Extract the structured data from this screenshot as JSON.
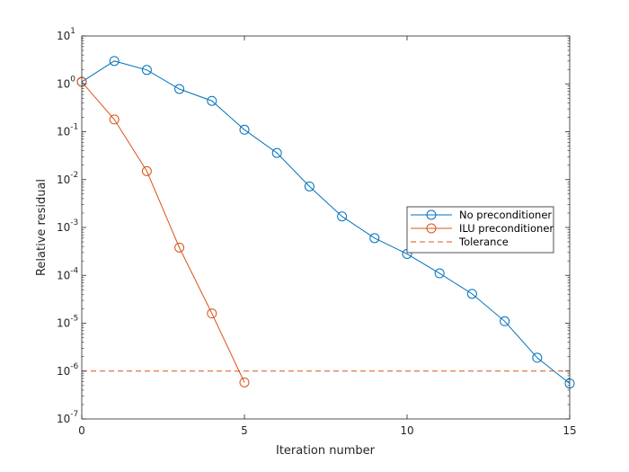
{
  "chart_data": {
    "type": "line",
    "xlabel": "Iteration number",
    "ylabel": "Relative residual",
    "xlim": [
      0,
      15
    ],
    "ylim": [
      1e-07,
      10
    ],
    "yscale": "log",
    "grid": false,
    "legend_location": "east",
    "x_ticks": [
      {
        "value": 0,
        "label": "0"
      },
      {
        "value": 5,
        "label": "5"
      },
      {
        "value": 10,
        "label": "10"
      },
      {
        "value": 15,
        "label": "15"
      }
    ],
    "y_ticks": [
      {
        "exp": -7,
        "base": "10",
        "sup": "-7"
      },
      {
        "exp": -6,
        "base": "10",
        "sup": "-6"
      },
      {
        "exp": -5,
        "base": "10",
        "sup": "-5"
      },
      {
        "exp": -4,
        "base": "10",
        "sup": "-4"
      },
      {
        "exp": -3,
        "base": "10",
        "sup": "-3"
      },
      {
        "exp": -2,
        "base": "10",
        "sup": "-2"
      },
      {
        "exp": -1,
        "base": "10",
        "sup": "-1"
      },
      {
        "exp": 0,
        "base": "10",
        "sup": "0"
      },
      {
        "exp": 1,
        "base": "10",
        "sup": "1"
      }
    ],
    "series": [
      {
        "name": "No preconditioner",
        "color": "#0072BD",
        "marker": "circle",
        "line_style": "solid",
        "x": [
          0,
          1,
          2,
          3,
          4,
          5,
          6,
          7,
          8,
          9,
          10,
          11,
          12,
          13,
          14,
          15
        ],
        "y": [
          1.1,
          3.0,
          1.95,
          0.78,
          0.44,
          0.11,
          0.036,
          0.0072,
          0.0017,
          0.0006,
          0.00028,
          0.00011,
          4.1e-05,
          1.1e-05,
          1.9e-06,
          5.5e-07
        ]
      },
      {
        "name": "ILU preconditioner",
        "color": "#D95319",
        "marker": "circle",
        "line_style": "solid",
        "x": [
          0,
          1,
          2,
          3,
          4,
          5
        ],
        "y": [
          1.1,
          0.18,
          0.015,
          0.00038,
          1.6e-05,
          5.8e-07
        ]
      },
      {
        "name": "Tolerance",
        "color": "#D95319",
        "marker": "none",
        "line_style": "dashed",
        "x": [
          0,
          15
        ],
        "y": [
          1e-06,
          1e-06
        ]
      }
    ]
  }
}
